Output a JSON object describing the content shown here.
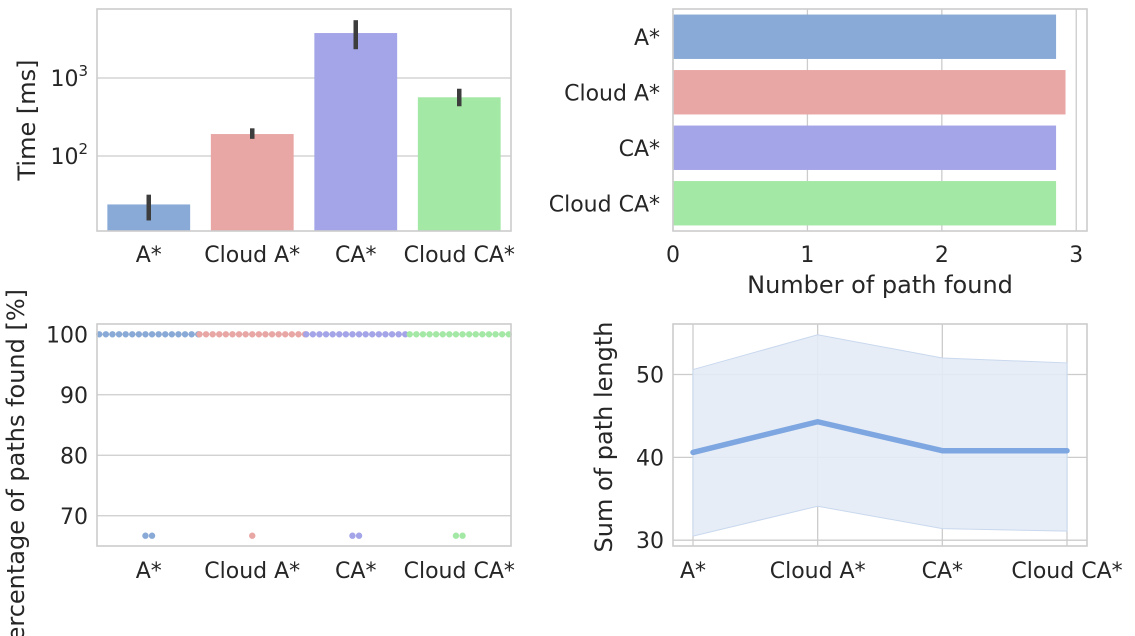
{
  "chart_data": [
    {
      "type": "bar",
      "orientation": "vertical",
      "yscale": "log",
      "categories": [
        "A*",
        "Cloud A*",
        "CA*",
        "Cloud CA*"
      ],
      "values": [
        24,
        190,
        3700,
        560
      ],
      "error_low": [
        15,
        165,
        2300,
        430
      ],
      "error_high": [
        32,
        225,
        5400,
        720
      ],
      "ylim": [
        11,
        7500
      ],
      "yticks": [
        100,
        1000
      ],
      "ytick_labels": [
        {
          "base": "10",
          "exp": "2"
        },
        {
          "base": "10",
          "exp": "3"
        }
      ],
      "xlabel": "",
      "ylabel": "Time [ms]",
      "grid": true,
      "colors": [
        "#89aad6",
        "#e8a6a4",
        "#a4a4e8",
        "#a4e8a6"
      ]
    },
    {
      "type": "bar",
      "orientation": "horizontal",
      "categories": [
        "A*",
        "Cloud A*",
        "CA*",
        "Cloud CA*"
      ],
      "values": [
        2.85,
        2.92,
        2.85,
        2.85
      ],
      "xlim": [
        0,
        3.08
      ],
      "xticks": [
        0,
        1,
        2,
        3
      ],
      "xtick_labels": [
        "0",
        "1",
        "2",
        "3"
      ],
      "xlabel": "Number of path found",
      "ylabel": "",
      "grid": true,
      "colors": [
        "#89aad6",
        "#e8a6a4",
        "#a4a4e8",
        "#a4e8a6"
      ]
    },
    {
      "type": "scatter",
      "style": "swarm",
      "categories": [
        "A*",
        "Cloud A*",
        "CA*",
        "Cloud CA*"
      ],
      "series": [
        {
          "name": "A*",
          "values": [
            100,
            100,
            100,
            100,
            100,
            100,
            100,
            100,
            100,
            100,
            100,
            100,
            100,
            100,
            100,
            100,
            66.7,
            66.7
          ]
        },
        {
          "name": "Cloud A*",
          "values": [
            100,
            100,
            100,
            100,
            100,
            100,
            100,
            100,
            100,
            100,
            100,
            100,
            100,
            100,
            100,
            100,
            100,
            66.7
          ]
        },
        {
          "name": "CA*",
          "values": [
            100,
            100,
            100,
            100,
            100,
            100,
            100,
            100,
            100,
            100,
            100,
            100,
            100,
            100,
            100,
            100,
            66.7,
            66.7
          ]
        },
        {
          "name": "Cloud CA*",
          "values": [
            100,
            100,
            100,
            100,
            100,
            100,
            100,
            100,
            100,
            100,
            100,
            100,
            100,
            100,
            100,
            100,
            66.7,
            66.7
          ]
        }
      ],
      "ylim": [
        65,
        101.7
      ],
      "yticks": [
        70,
        80,
        90,
        100
      ],
      "ytick_labels": [
        "70",
        "80",
        "90",
        "100"
      ],
      "xlabel": "",
      "ylabel": "Percentage of paths found [%]",
      "grid": true,
      "colors": [
        "#89aad6",
        "#e8a6a4",
        "#a4a4e8",
        "#a4e8a6"
      ]
    },
    {
      "type": "line",
      "categories": [
        "A*",
        "Cloud A*",
        "CA*",
        "Cloud CA*"
      ],
      "values": [
        40.6,
        44.3,
        40.8,
        40.8
      ],
      "ci_low": [
        30.5,
        34.1,
        31.4,
        31.1
      ],
      "ci_high": [
        50.6,
        54.8,
        52.0,
        51.4
      ],
      "ylim": [
        29.3,
        56.1
      ],
      "yticks": [
        30,
        40,
        50
      ],
      "ytick_labels": [
        "30",
        "40",
        "50"
      ],
      "xlabel": "",
      "ylabel": "Sum of path length",
      "grid": true,
      "line_color": "#7ea6e0",
      "band_color": "#e3ebf6"
    }
  ]
}
